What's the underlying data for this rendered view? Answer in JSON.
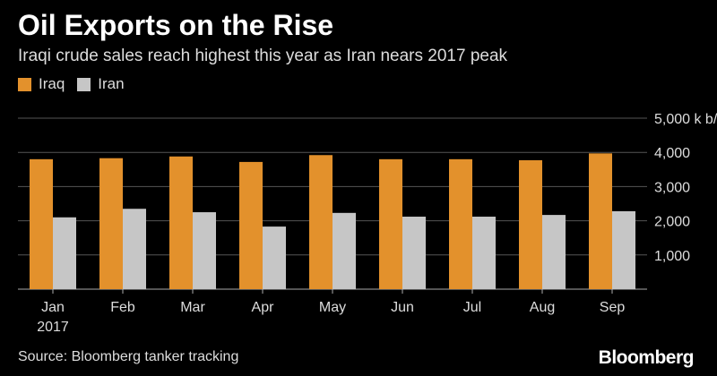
{
  "chart_data": {
    "type": "bar",
    "title": "Oil Exports on the Rise",
    "subtitle": "Iraqi crude sales reach highest this year as Iran nears 2017 peak",
    "categories": [
      "Jan",
      "Feb",
      "Mar",
      "Apr",
      "May",
      "Jun",
      "Jul",
      "Aug",
      "Sep"
    ],
    "category_sublabels": [
      "2017",
      "",
      "",
      "",
      "",
      "",
      "",
      "",
      ""
    ],
    "series": [
      {
        "name": "Iraq",
        "color": "#E3912C",
        "values": [
          3800,
          3830,
          3880,
          3720,
          3920,
          3800,
          3800,
          3770,
          3970
        ]
      },
      {
        "name": "Iran",
        "color": "#C6C6C6",
        "values": [
          2100,
          2350,
          2250,
          1830,
          2230,
          2120,
          2120,
          2170,
          2280
        ]
      }
    ],
    "ylim": [
      0,
      5000
    ],
    "yticks": [
      1000,
      2000,
      3000,
      4000,
      5000
    ],
    "ytick_labels": [
      "1,000",
      "2,000",
      "3,000",
      "4,000",
      "5,000 k b/d"
    ],
    "ylabel": "k b/d",
    "xlabel": "",
    "grid": true,
    "legend_position": "top-left"
  },
  "footer": {
    "source": "Source: Bloomberg tanker tracking",
    "brand": "Bloomberg"
  },
  "colors": {
    "background": "#000000",
    "grid": "#555555",
    "text": "#dddddd"
  }
}
